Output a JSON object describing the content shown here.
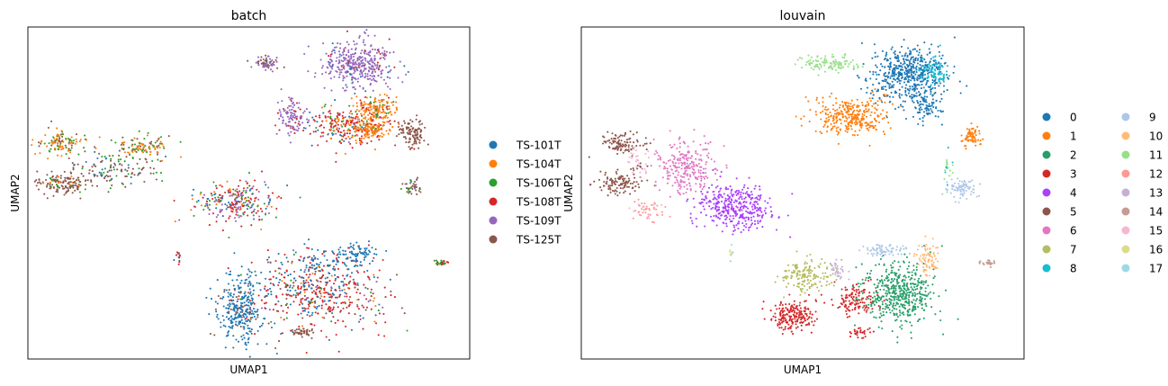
{
  "chart_data": [
    {
      "type": "scatter",
      "title": "batch",
      "xlabel": "UMAP1",
      "ylabel": "UMAP2",
      "xlim": [
        0,
        10
      ],
      "ylim": [
        0,
        10
      ],
      "ticks": "none",
      "grid": false,
      "legend_position": "right",
      "legend_columns": 1,
      "legend": [
        {
          "label": "TS-101T",
          "color": "#1f77b4"
        },
        {
          "label": "TS-104T",
          "color": "#ff7f0e"
        },
        {
          "label": "TS-106T",
          "color": "#2ca02c"
        },
        {
          "label": "TS-108T",
          "color": "#d62728"
        },
        {
          "label": "TS-109T",
          "color": "#9467bd"
        },
        {
          "label": "TS-125T",
          "color": "#8c564b"
        }
      ],
      "clusters": [
        {
          "x": 7.5,
          "y": 8.9,
          "rx": 0.8,
          "ry": 0.7,
          "n": 380,
          "mix": [
            [
              4,
              0.88
            ],
            [
              0,
              0.06
            ],
            [
              3,
              0.06
            ]
          ]
        },
        {
          "x": 6.0,
          "y": 7.3,
          "rx": 0.35,
          "ry": 0.55,
          "n": 110,
          "mix": [
            [
              4,
              0.85
            ],
            [
              3,
              0.15
            ]
          ]
        },
        {
          "x": 7.2,
          "y": 7.0,
          "rx": 0.9,
          "ry": 0.55,
          "n": 260,
          "mix": [
            [
              3,
              0.5
            ],
            [
              1,
              0.2
            ],
            [
              2,
              0.1
            ],
            [
              4,
              0.1
            ],
            [
              0,
              0.1
            ]
          ]
        },
        {
          "x": 7.7,
          "y": 6.9,
          "rx": 0.45,
          "ry": 0.25,
          "n": 100,
          "mix": [
            [
              1,
              0.9
            ],
            [
              3,
              0.1
            ]
          ]
        },
        {
          "x": 7.9,
          "y": 7.5,
          "rx": 0.45,
          "ry": 0.5,
          "n": 170,
          "mix": [
            [
              1,
              0.7
            ],
            [
              2,
              0.15
            ],
            [
              3,
              0.15
            ]
          ]
        },
        {
          "x": 5.4,
          "y": 8.9,
          "rx": 0.35,
          "ry": 0.18,
          "n": 70,
          "mix": [
            [
              4,
              0.6
            ],
            [
              5,
              0.3
            ],
            [
              2,
              0.1
            ]
          ]
        },
        {
          "x": 8.7,
          "y": 6.8,
          "rx": 0.3,
          "ry": 0.4,
          "n": 110,
          "mix": [
            [
              5,
              1.0
            ]
          ]
        },
        {
          "x": 8.7,
          "y": 5.2,
          "rx": 0.25,
          "ry": 0.3,
          "n": 40,
          "mix": [
            [
              5,
              0.5
            ],
            [
              2,
              0.3
            ],
            [
              4,
              0.2
            ]
          ]
        },
        {
          "x": 0.8,
          "y": 6.5,
          "rx": 0.6,
          "ry": 0.35,
          "n": 120,
          "mix": [
            [
              1,
              0.5
            ],
            [
              2,
              0.25
            ],
            [
              5,
              0.25
            ]
          ]
        },
        {
          "x": 2.6,
          "y": 6.4,
          "rx": 0.6,
          "ry": 0.35,
          "n": 110,
          "mix": [
            [
              1,
              0.4
            ],
            [
              2,
              0.3
            ],
            [
              5,
              0.3
            ]
          ]
        },
        {
          "x": 0.8,
          "y": 5.3,
          "rx": 0.6,
          "ry": 0.35,
          "n": 150,
          "mix": [
            [
              5,
              0.85
            ],
            [
              2,
              0.1
            ],
            [
              1,
              0.05
            ]
          ]
        },
        {
          "x": 2.0,
          "y": 5.7,
          "rx": 1.1,
          "ry": 0.6,
          "n": 130,
          "mix": [
            [
              5,
              0.7
            ],
            [
              2,
              0.2
            ],
            [
              0,
              0.1
            ]
          ]
        },
        {
          "x": 4.7,
          "y": 4.7,
          "rx": 0.9,
          "ry": 0.65,
          "n": 270,
          "mix": [
            [
              3,
              0.3
            ],
            [
              0,
              0.2
            ],
            [
              4,
              0.2
            ],
            [
              2,
              0.15
            ],
            [
              1,
              0.15
            ]
          ]
        },
        {
          "x": 4.8,
          "y": 1.5,
          "rx": 0.5,
          "ry": 1.0,
          "n": 300,
          "mix": [
            [
              0,
              0.9
            ],
            [
              5,
              0.1
            ]
          ]
        },
        {
          "x": 6.5,
          "y": 2.0,
          "rx": 1.6,
          "ry": 1.1,
          "n": 520,
          "mix": [
            [
              3,
              0.45
            ],
            [
              0,
              0.25
            ],
            [
              5,
              0.15
            ],
            [
              2,
              0.05
            ],
            [
              1,
              0.05
            ],
            [
              4,
              0.05
            ]
          ]
        },
        {
          "x": 6.6,
          "y": 3.0,
          "rx": 1.0,
          "ry": 0.35,
          "n": 80,
          "mix": [
            [
              0,
              0.8
            ],
            [
              3,
              0.2
            ]
          ]
        },
        {
          "x": 7.5,
          "y": 3.2,
          "rx": 0.4,
          "ry": 0.3,
          "n": 60,
          "mix": [
            [
              0,
              0.9
            ],
            [
              3,
              0.1
            ]
          ]
        },
        {
          "x": 6.2,
          "y": 0.8,
          "rx": 0.25,
          "ry": 0.12,
          "n": 40,
          "mix": [
            [
              5,
              1.0
            ]
          ]
        },
        {
          "x": 9.35,
          "y": 2.9,
          "rx": 0.15,
          "ry": 0.08,
          "n": 25,
          "mix": [
            [
              2,
              0.5
            ],
            [
              3,
              0.5
            ]
          ]
        },
        {
          "x": 3.4,
          "y": 3.1,
          "rx": 0.08,
          "ry": 0.3,
          "n": 12,
          "mix": [
            [
              3,
              0.6
            ],
            [
              0,
              0.4
            ]
          ]
        }
      ]
    },
    {
      "type": "scatter",
      "title": "louvain",
      "xlabel": "UMAP1",
      "ylabel": "UMAP2",
      "xlim": [
        0,
        10
      ],
      "ylim": [
        0,
        10
      ],
      "ticks": "none",
      "grid": false,
      "legend_position": "right",
      "legend_columns": 2,
      "legend": [
        {
          "label": "0",
          "color": "#1f77b4"
        },
        {
          "label": "1",
          "color": "#ff7f0e"
        },
        {
          "label": "2",
          "color": "#279e68"
        },
        {
          "label": "3",
          "color": "#d62728"
        },
        {
          "label": "4",
          "color": "#aa40fc"
        },
        {
          "label": "5",
          "color": "#8c564b"
        },
        {
          "label": "6",
          "color": "#e377c2"
        },
        {
          "label": "7",
          "color": "#b5bd61"
        },
        {
          "label": "8",
          "color": "#17becf"
        },
        {
          "label": "9",
          "color": "#aec7e8"
        },
        {
          "label": "10",
          "color": "#ffbb78"
        },
        {
          "label": "11",
          "color": "#98df8a"
        },
        {
          "label": "12",
          "color": "#ff9896"
        },
        {
          "label": "13",
          "color": "#c5b0d5"
        },
        {
          "label": "14",
          "color": "#c49c94"
        },
        {
          "label": "15",
          "color": "#f7b6d2"
        },
        {
          "label": "16",
          "color": "#dbdb8d"
        },
        {
          "label": "17",
          "color": "#9edae5"
        }
      ],
      "clusters": [
        {
          "x": 7.4,
          "y": 8.6,
          "rx": 0.85,
          "ry": 0.85,
          "n": 520,
          "mix": [
            [
              0,
              1.0
            ]
          ]
        },
        {
          "x": 7.8,
          "y": 7.6,
          "rx": 0.35,
          "ry": 0.4,
          "n": 90,
          "mix": [
            [
              0,
              1.0
            ]
          ]
        },
        {
          "x": 8.0,
          "y": 8.7,
          "rx": 0.3,
          "ry": 0.45,
          "n": 80,
          "mix": [
            [
              8,
              1.0
            ]
          ]
        },
        {
          "x": 6.1,
          "y": 7.3,
          "rx": 0.8,
          "ry": 0.6,
          "n": 320,
          "mix": [
            [
              1,
              1.0
            ]
          ]
        },
        {
          "x": 8.8,
          "y": 6.7,
          "rx": 0.25,
          "ry": 0.3,
          "n": 70,
          "mix": [
            [
              1,
              1.0
            ]
          ]
        },
        {
          "x": 5.6,
          "y": 8.9,
          "rx": 0.7,
          "ry": 0.2,
          "n": 110,
          "mix": [
            [
              11,
              1.0
            ]
          ]
        },
        {
          "x": 8.3,
          "y": 5.8,
          "rx": 0.12,
          "ry": 0.6,
          "n": 20,
          "mix": [
            [
              11,
              0.6
            ],
            [
              8,
              0.4
            ]
          ]
        },
        {
          "x": 0.9,
          "y": 6.5,
          "rx": 0.5,
          "ry": 0.3,
          "n": 100,
          "mix": [
            [
              5,
              1.0
            ]
          ]
        },
        {
          "x": 0.9,
          "y": 5.3,
          "rx": 0.5,
          "ry": 0.3,
          "n": 110,
          "mix": [
            [
              5,
              1.0
            ]
          ]
        },
        {
          "x": 2.4,
          "y": 5.8,
          "rx": 0.7,
          "ry": 0.8,
          "n": 260,
          "mix": [
            [
              6,
              1.0
            ]
          ]
        },
        {
          "x": 1.5,
          "y": 4.5,
          "rx": 0.4,
          "ry": 0.35,
          "n": 50,
          "mix": [
            [
              12,
              0.8
            ],
            [
              15,
              0.2
            ]
          ]
        },
        {
          "x": 1.3,
          "y": 6.0,
          "rx": 0.3,
          "ry": 0.5,
          "n": 40,
          "mix": [
            [
              15,
              0.7
            ],
            [
              5,
              0.3
            ]
          ]
        },
        {
          "x": 3.5,
          "y": 4.6,
          "rx": 0.9,
          "ry": 0.65,
          "n": 380,
          "mix": [
            [
              4,
              1.0
            ]
          ]
        },
        {
          "x": 8.6,
          "y": 5.1,
          "rx": 0.35,
          "ry": 0.35,
          "n": 80,
          "mix": [
            [
              9,
              1.0
            ]
          ]
        },
        {
          "x": 5.1,
          "y": 2.5,
          "rx": 0.55,
          "ry": 0.5,
          "n": 170,
          "mix": [
            [
              7,
              1.0
            ]
          ]
        },
        {
          "x": 4.8,
          "y": 1.3,
          "rx": 0.5,
          "ry": 0.45,
          "n": 200,
          "mix": [
            [
              3,
              1.0
            ]
          ]
        },
        {
          "x": 6.2,
          "y": 1.8,
          "rx": 0.5,
          "ry": 0.45,
          "n": 130,
          "mix": [
            [
              3,
              1.0
            ]
          ]
        },
        {
          "x": 6.3,
          "y": 0.8,
          "rx": 0.25,
          "ry": 0.15,
          "n": 30,
          "mix": [
            [
              3,
              1.0
            ]
          ]
        },
        {
          "x": 7.2,
          "y": 2.0,
          "rx": 0.8,
          "ry": 1.0,
          "n": 480,
          "mix": [
            [
              2,
              1.0
            ]
          ]
        },
        {
          "x": 6.8,
          "y": 3.3,
          "rx": 0.6,
          "ry": 0.2,
          "n": 70,
          "mix": [
            [
              9,
              1.0
            ]
          ]
        },
        {
          "x": 7.8,
          "y": 3.0,
          "rx": 0.25,
          "ry": 0.5,
          "n": 80,
          "mix": [
            [
              10,
              1.0
            ]
          ]
        },
        {
          "x": 5.8,
          "y": 2.7,
          "rx": 0.25,
          "ry": 0.25,
          "n": 30,
          "mix": [
            [
              13,
              1.0
            ]
          ]
        },
        {
          "x": 9.2,
          "y": 2.9,
          "rx": 0.2,
          "ry": 0.1,
          "n": 25,
          "mix": [
            [
              14,
              1.0
            ]
          ]
        },
        {
          "x": 3.4,
          "y": 3.2,
          "rx": 0.07,
          "ry": 0.3,
          "n": 10,
          "mix": [
            [
              17,
              0.5
            ],
            [
              16,
              0.5
            ]
          ]
        }
      ]
    }
  ]
}
